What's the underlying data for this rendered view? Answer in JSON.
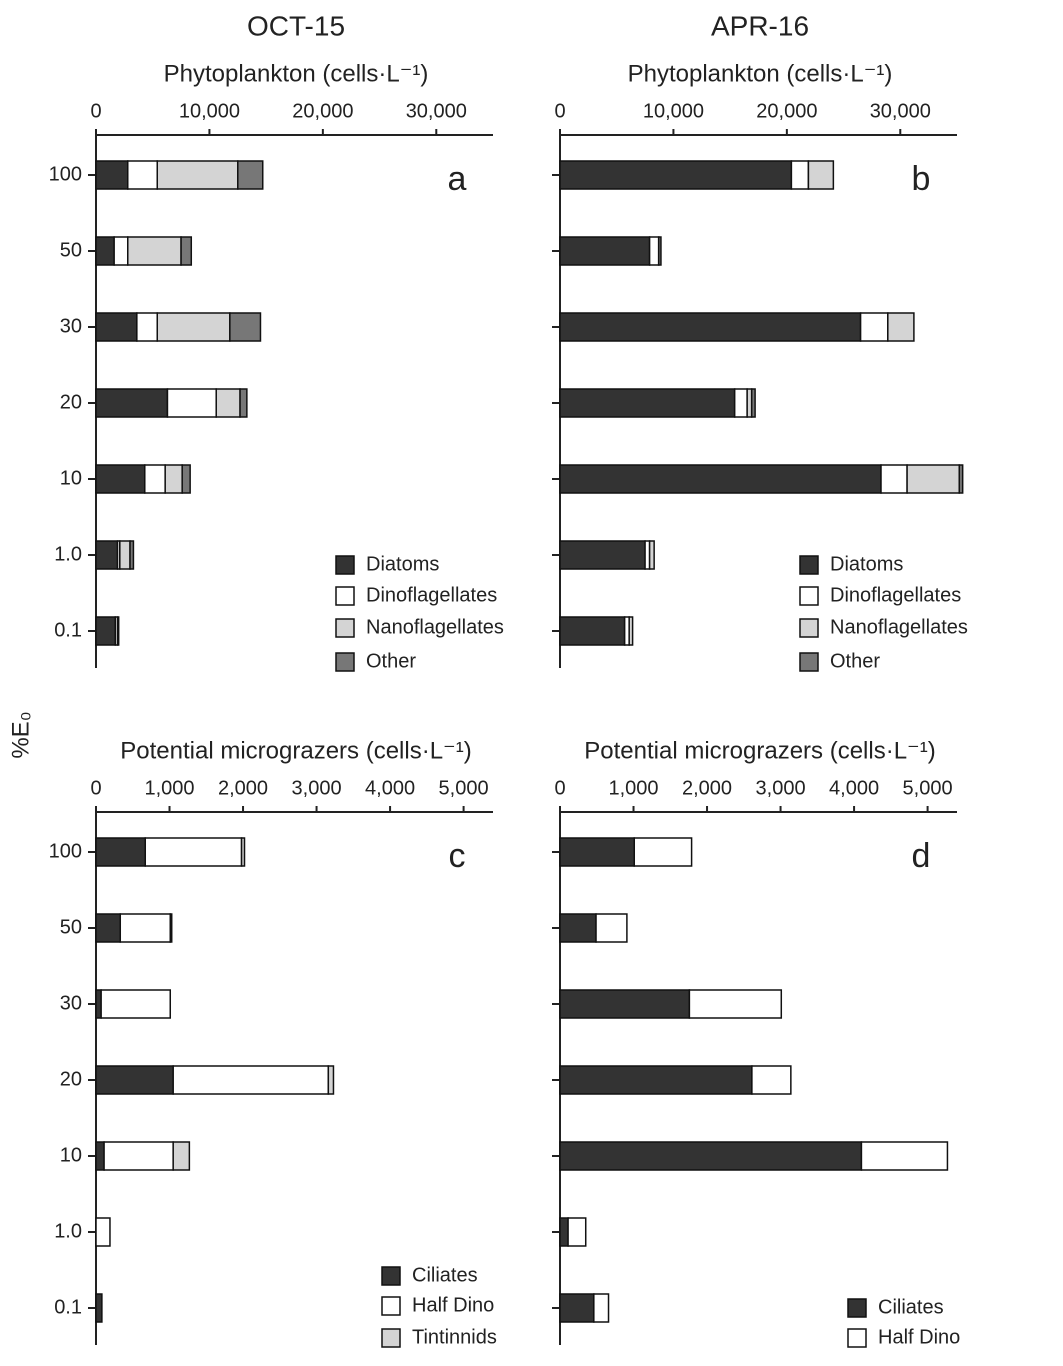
{
  "shared_ylabel": "%E₀",
  "chart_data": [
    {
      "type": "bar",
      "orientation": "horizontal",
      "stacked": true,
      "title": "OCT-15",
      "xlabel": "Phytoplankton (cells·L⁻¹)",
      "panel_label": "a",
      "categories": [
        "100",
        "50",
        "30",
        "20",
        "10",
        "1.0",
        "0.1"
      ],
      "series": [
        {
          "name": "Diatoms",
          "color": "#333333",
          "values": [
            2800,
            1600,
            3600,
            6300,
            4300,
            1900,
            1700
          ]
        },
        {
          "name": "Dinoflagellates",
          "color": "#ffffff",
          "values": [
            2600,
            1200,
            1800,
            4300,
            1800,
            200,
            200
          ]
        },
        {
          "name": "Nanoflagellates",
          "color": "#d4d4d4",
          "values": [
            7100,
            4700,
            6400,
            2100,
            1500,
            900,
            0
          ]
        },
        {
          "name": "Other",
          "color": "#777777",
          "values": [
            2200,
            900,
            2700,
            600,
            700,
            300,
            100
          ]
        }
      ],
      "xlim": [
        0,
        35000
      ],
      "xticks": [
        0,
        {
          "value": 10000,
          "label": "10,000"
        },
        {
          "value": 20000,
          "label": "20,000"
        },
        {
          "value": 30000,
          "label": "30,000"
        }
      ],
      "legend": "lower right",
      "grid": false
    },
    {
      "type": "bar",
      "orientation": "horizontal",
      "stacked": true,
      "title": "APR-16",
      "xlabel": "Phytoplankton (cells·L⁻¹)",
      "panel_label": "b",
      "categories": [
        null,
        null,
        null,
        null,
        null,
        null,
        null
      ],
      "series": [
        {
          "name": "Diatoms",
          "color": "#333333",
          "values": [
            20400,
            7900,
            26500,
            15400,
            28300,
            7500,
            5700
          ]
        },
        {
          "name": "Dinoflagellates",
          "color": "#ffffff",
          "values": [
            1500,
            800,
            2400,
            1100,
            2300,
            400,
            400
          ]
        },
        {
          "name": "Nanoflagellates",
          "color": "#d4d4d4",
          "values": [
            2200,
            0,
            2300,
            400,
            4600,
            400,
            300
          ]
        },
        {
          "name": "Other",
          "color": "#777777",
          "values": [
            0,
            200,
            0,
            300,
            300,
            0,
            0
          ]
        }
      ],
      "xlim": [
        0,
        35000
      ],
      "xticks": [
        0,
        {
          "value": 10000,
          "label": "10,000"
        },
        {
          "value": 20000,
          "label": "20,000"
        },
        {
          "value": 30000,
          "label": "30,000"
        }
      ],
      "legend": "lower right",
      "grid": false
    },
    {
      "type": "bar",
      "orientation": "horizontal",
      "stacked": true,
      "xlabel": "Potential micrograzers (cells·L⁻¹)",
      "panel_label": "c",
      "categories": [
        "100",
        "50",
        "30",
        "20",
        "10",
        "1.0",
        "0.1"
      ],
      "series": [
        {
          "name": "Ciliates",
          "color": "#333333",
          "values": [
            670,
            330,
            70,
            1050,
            110,
            0,
            80
          ]
        },
        {
          "name": "Half Dino",
          "color": "#ffffff",
          "values": [
            1310,
            680,
            940,
            2110,
            940,
            190,
            0
          ]
        },
        {
          "name": "Tintinnids",
          "color": "#d4d4d4",
          "values": [
            40,
            20,
            0,
            70,
            220,
            0,
            0
          ]
        }
      ],
      "xlim": [
        0,
        5400
      ],
      "xticks": [
        0,
        {
          "value": 1000,
          "label": "1,000"
        },
        {
          "value": 2000,
          "label": "2,000"
        },
        {
          "value": 3000,
          "label": "3,000"
        },
        {
          "value": 4000,
          "label": "4,000"
        },
        {
          "value": 5000,
          "label": "5,000"
        }
      ],
      "legend": "lower right",
      "grid": false
    },
    {
      "type": "bar",
      "orientation": "horizontal",
      "stacked": true,
      "xlabel": "Potential micrograzers (cells·L⁻¹)",
      "panel_label": "d",
      "categories": [
        null,
        null,
        null,
        null,
        null,
        null,
        null
      ],
      "series": [
        {
          "name": "Ciliates",
          "color": "#333333",
          "values": [
            1010,
            490,
            1760,
            2610,
            4100,
            110,
            460
          ]
        },
        {
          "name": "Half Dino",
          "color": "#ffffff",
          "values": [
            780,
            420,
            1250,
            530,
            1170,
            240,
            200
          ]
        }
      ],
      "xlim": [
        0,
        5400
      ],
      "xticks": [
        0,
        {
          "value": 1000,
          "label": "1,000"
        },
        {
          "value": 2000,
          "label": "2,000"
        },
        {
          "value": 3000,
          "label": "3,000"
        },
        {
          "value": 4000,
          "label": "4,000"
        },
        {
          "value": 5000,
          "label": "5,000"
        }
      ],
      "legend": "lower right",
      "grid": false
    }
  ]
}
